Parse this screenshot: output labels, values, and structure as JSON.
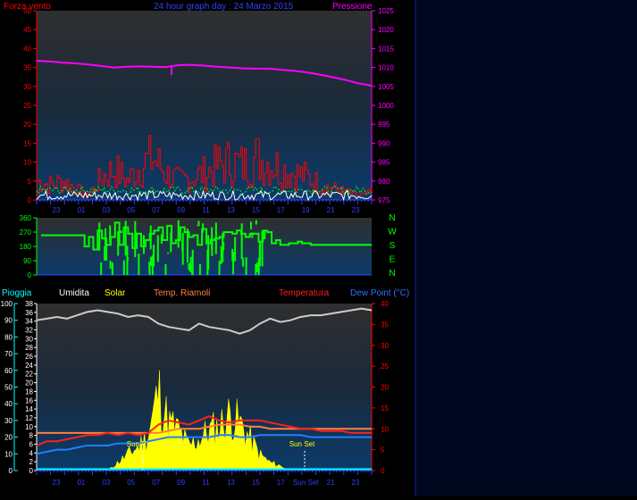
{
  "header": {
    "left_label": "Forza vento",
    "title": "24 hour graph day : 24 Marzo 2015",
    "right_label": "Pressione"
  },
  "wind_dir_labels": [
    "N",
    "W",
    "S",
    "E",
    "N"
  ],
  "legend_bottom": {
    "rain": "Pioggia",
    "humidity": "Umidita",
    "solar": "Solar",
    "soil_temp": "Temp. Riamoli",
    "temperature": "Temperatura",
    "dew_point": "Dew Point (°C)"
  },
  "annotations": {
    "sunrise": "Sun Rise",
    "sunset": "Sun Set"
  },
  "x_ticks": [
    "23",
    "01",
    "03",
    "05",
    "07",
    "09",
    "11",
    "13",
    "15",
    "17",
    "19",
    "21",
    "23"
  ],
  "x_ticks_bottom": [
    "23",
    "01",
    "03",
    "05",
    "07",
    "09",
    "11",
    "13",
    "15",
    "17",
    "Sun Set",
    "21",
    "23"
  ],
  "colors": {
    "background": "#000000",
    "plot_bg_top": "#333333",
    "plot_bg_bottom": "#0a3a6a",
    "pressure": "#ff00ff",
    "wind": "#ff0000",
    "gust": "#ffffff",
    "avg_wind": "#00ff00",
    "wind_dir": "#00ff00",
    "humidity": "#cccccc",
    "solar": "#ffff00",
    "temperature": "#ff2020",
    "soil_temp": "#ff8040",
    "dew_point": "#2080ff",
    "rain": "#00ffff",
    "blue_text": "#3040ff",
    "red_text": "#ff0000",
    "magenta_text": "#ff00ff"
  },
  "chart_data": [
    {
      "type": "line",
      "title": "24 hour graph day : 24 Marzo 2015",
      "x_ticks": [
        "23",
        "01",
        "03",
        "05",
        "07",
        "09",
        "11",
        "13",
        "15",
        "17",
        "19",
        "21",
        "23"
      ],
      "left_axis": {
        "label": "Forza vento",
        "range": [
          0,
          50
        ],
        "ticks": [
          0,
          5,
          10,
          15,
          20,
          25,
          30,
          35,
          40,
          45,
          50
        ]
      },
      "right_axis": {
        "label": "Pressione",
        "range": [
          975,
          1025
        ],
        "ticks": [
          975,
          980,
          985,
          990,
          995,
          1000,
          1005,
          1010,
          1015,
          1020,
          1025
        ]
      },
      "series": [
        {
          "name": "Pressione",
          "axis": "right",
          "values": [
            1011.8,
            1011.6,
            1011.3,
            1011.1,
            1010.8,
            1010.4,
            1010.0,
            1010.2,
            1010.3,
            1010.2,
            1010.1,
            1010.6,
            1010.7,
            1010.5,
            1010.2,
            1010.0,
            1009.8,
            1009.7,
            1009.7,
            1009.4,
            1009.1,
            1008.7,
            1008.1,
            1007.4,
            1006.7,
            1005.8,
            1005.2
          ]
        },
        {
          "name": "",
          "axis": "left",
          "values": [
            5,
            4,
            5,
            3,
            1,
            6,
            8,
            5,
            9,
            11,
            7,
            5,
            6,
            7,
            9,
            10,
            9,
            11,
            10,
            8,
            7,
            6,
            4,
            3,
            2,
            1,
            2
          ]
        }
      ]
    },
    {
      "type": "scatter",
      "y_ticks": [
        0,
        90,
        180,
        270,
        360
      ],
      "range": [
        0,
        360
      ],
      "values": [
        250,
        250,
        250,
        250,
        250,
        250,
        250,
        250,
        250,
        250,
        180,
        240,
        160,
        280,
        230,
        190,
        240,
        330,
        190,
        300,
        260,
        170,
        260,
        180,
        220,
        260,
        280,
        300,
        220,
        310,
        200,
        220,
        300,
        270,
        240,
        250,
        190,
        290,
        200,
        220,
        230,
        240,
        270,
        270,
        260,
        280,
        260,
        240,
        260,
        260,
        210,
        280,
        270,
        200,
        220,
        190,
        190,
        200,
        200,
        210,
        200,
        200,
        190,
        190,
        190,
        190,
        190,
        190,
        190,
        190,
        190,
        190,
        190,
        190,
        190,
        190,
        190
      ]
    },
    {
      "type": "line",
      "x_ticks": [
        "23",
        "01",
        "03",
        "05",
        "07",
        "09",
        "11",
        "13",
        "15",
        "17",
        "Sun Set",
        "21",
        "23"
      ],
      "left_axis": {
        "label": "Pioggia",
        "range": [
          0,
          100
        ],
        "ticks": [
          0,
          10,
          20,
          30,
          40,
          50,
          60,
          70,
          80,
          90,
          100
        ]
      },
      "left_axis_2": {
        "label": "Umidita",
        "range": [
          0,
          38
        ],
        "ticks": [
          0,
          2,
          4,
          6,
          8,
          10,
          12,
          14,
          16,
          18,
          20,
          22,
          24,
          26,
          28,
          30,
          32,
          34,
          36,
          38
        ]
      },
      "right_axis": {
        "label": "Temperatura",
        "range": [
          0,
          40
        ],
        "ticks": [
          0,
          5,
          10,
          15,
          20,
          25,
          30,
          35,
          40
        ]
      },
      "series": [
        {
          "name": "Umidita",
          "values": [
            90,
            91,
            92,
            91,
            93,
            95,
            96,
            95,
            94,
            92,
            93,
            92,
            88,
            86,
            85,
            84,
            88,
            86,
            85,
            84,
            82,
            84,
            88,
            91,
            89,
            90,
            92,
            93,
            93,
            94,
            95,
            96,
            97,
            96
          ]
        },
        {
          "name": "Solar",
          "values": [
            0,
            0,
            0,
            0,
            0,
            0,
            0,
            0,
            5,
            10,
            15,
            22,
            50,
            30,
            25,
            15,
            20,
            25,
            28,
            35,
            30,
            20,
            10,
            5,
            3,
            0,
            0,
            0,
            0,
            0,
            0,
            0,
            0,
            0
          ]
        },
        {
          "name": "Temperatura",
          "values": [
            6,
            7,
            7,
            7.5,
            8,
            8.5,
            8.5,
            9,
            8.5,
            9,
            8.5,
            9,
            11,
            12,
            11.5,
            11,
            12,
            13,
            12,
            11.5,
            12,
            12,
            12,
            11.5,
            11,
            10.5,
            10,
            10,
            9.5,
            9.5,
            9.5,
            9,
            9,
            9
          ]
        },
        {
          "name": "Temp. Riamoli",
          "values": [
            9,
            9,
            9,
            9,
            9,
            9,
            9,
            9,
            9,
            9,
            9,
            9,
            9,
            9.5,
            10,
            10,
            10,
            10.5,
            11,
            11,
            11,
            10.5,
            10.5,
            10,
            10,
            10,
            10,
            10,
            10,
            10,
            10,
            10,
            10,
            10
          ]
        },
        {
          "name": "Dew Point (°C)",
          "values": [
            4,
            4.5,
            5,
            5,
            5.5,
            6,
            6,
            6,
            6.5,
            6.5,
            6.5,
            7,
            7.5,
            8,
            8,
            8,
            8,
            8,
            8.5,
            8.5,
            8,
            8,
            8.5,
            8.5,
            8.5,
            8.5,
            8.5,
            8,
            8,
            8,
            8,
            8,
            8,
            8
          ]
        },
        {
          "name": "Pioggia",
          "values": [
            0,
            0,
            0,
            0,
            0,
            0,
            0,
            0,
            0,
            0,
            0,
            0,
            0,
            0,
            0,
            0,
            0,
            0,
            0,
            0,
            0,
            0,
            0,
            0,
            0,
            0,
            0,
            0,
            0,
            0,
            0,
            0,
            0,
            0
          ]
        }
      ]
    }
  ]
}
